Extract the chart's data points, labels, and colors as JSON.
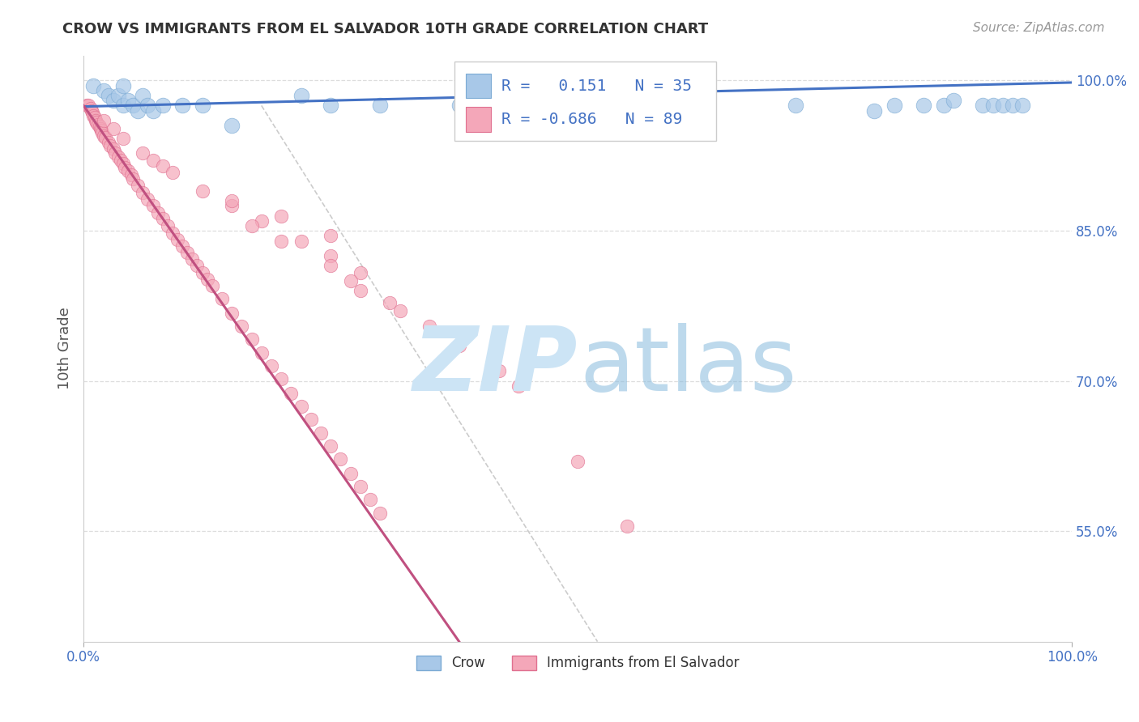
{
  "title": "CROW VS IMMIGRANTS FROM EL SALVADOR 10TH GRADE CORRELATION CHART",
  "source_text": "Source: ZipAtlas.com",
  "ylabel": "10th Grade",
  "xlim": [
    0.0,
    1.0
  ],
  "ylim": [
    0.44,
    1.025
  ],
  "yticks": [
    0.55,
    0.7,
    0.85,
    1.0
  ],
  "yticklabels": [
    "55.0%",
    "70.0%",
    "85.0%",
    "100.0%"
  ],
  "blue_line_x": [
    0.0,
    1.0
  ],
  "blue_line_y": [
    0.974,
    0.998
  ],
  "pink_line_x": [
    0.0,
    0.38
  ],
  "pink_line_y": [
    0.975,
    0.44
  ],
  "diag_line_x": [
    0.18,
    0.52
  ],
  "diag_line_y": [
    0.975,
    0.44
  ],
  "crow_x": [
    0.01,
    0.02,
    0.025,
    0.03,
    0.035,
    0.04,
    0.04,
    0.045,
    0.05,
    0.055,
    0.06,
    0.065,
    0.07,
    0.12,
    0.22,
    0.38,
    0.43,
    0.44,
    0.72,
    0.8,
    0.82,
    0.85,
    0.87,
    0.88,
    0.91,
    0.92,
    0.93,
    0.94,
    0.95,
    0.08,
    0.1,
    0.15,
    0.25,
    0.3,
    0.5
  ],
  "crow_y": [
    0.995,
    0.99,
    0.985,
    0.98,
    0.985,
    0.975,
    0.995,
    0.98,
    0.975,
    0.97,
    0.985,
    0.975,
    0.97,
    0.975,
    0.985,
    0.975,
    0.975,
    0.975,
    0.975,
    0.97,
    0.975,
    0.975,
    0.975,
    0.98,
    0.975,
    0.975,
    0.975,
    0.975,
    0.975,
    0.975,
    0.975,
    0.955,
    0.975,
    0.975,
    0.97
  ],
  "salv_x": [
    0.003,
    0.005,
    0.007,
    0.008,
    0.009,
    0.01,
    0.011,
    0.012,
    0.013,
    0.015,
    0.016,
    0.017,
    0.018,
    0.019,
    0.02,
    0.022,
    0.025,
    0.027,
    0.03,
    0.032,
    0.035,
    0.038,
    0.04,
    0.042,
    0.045,
    0.048,
    0.05,
    0.055,
    0.06,
    0.065,
    0.07,
    0.075,
    0.08,
    0.085,
    0.09,
    0.095,
    0.1,
    0.105,
    0.11,
    0.115,
    0.12,
    0.125,
    0.13,
    0.14,
    0.15,
    0.16,
    0.17,
    0.18,
    0.19,
    0.2,
    0.21,
    0.22,
    0.23,
    0.24,
    0.25,
    0.26,
    0.27,
    0.28,
    0.29,
    0.3,
    0.02,
    0.03,
    0.04,
    0.06,
    0.07,
    0.08,
    0.09,
    0.12,
    0.15,
    0.18,
    0.22,
    0.25,
    0.28,
    0.17,
    0.2,
    0.25,
    0.27,
    0.31,
    0.35,
    0.38,
    0.42,
    0.44,
    0.28,
    0.32,
    0.5,
    0.55,
    0.15,
    0.2,
    0.25
  ],
  "salv_y": [
    0.975,
    0.975,
    0.972,
    0.97,
    0.968,
    0.965,
    0.963,
    0.96,
    0.958,
    0.956,
    0.954,
    0.952,
    0.95,
    0.948,
    0.945,
    0.943,
    0.938,
    0.935,
    0.932,
    0.928,
    0.924,
    0.92,
    0.917,
    0.913,
    0.91,
    0.906,
    0.902,
    0.895,
    0.888,
    0.882,
    0.875,
    0.868,
    0.862,
    0.855,
    0.848,
    0.841,
    0.835,
    0.828,
    0.822,
    0.815,
    0.808,
    0.802,
    0.795,
    0.782,
    0.768,
    0.755,
    0.742,
    0.728,
    0.715,
    0.702,
    0.688,
    0.675,
    0.662,
    0.648,
    0.635,
    0.622,
    0.608,
    0.595,
    0.582,
    0.568,
    0.96,
    0.952,
    0.942,
    0.928,
    0.92,
    0.915,
    0.908,
    0.89,
    0.875,
    0.86,
    0.84,
    0.825,
    0.808,
    0.855,
    0.84,
    0.815,
    0.8,
    0.778,
    0.755,
    0.735,
    0.71,
    0.695,
    0.79,
    0.77,
    0.62,
    0.555,
    0.88,
    0.865,
    0.845
  ]
}
